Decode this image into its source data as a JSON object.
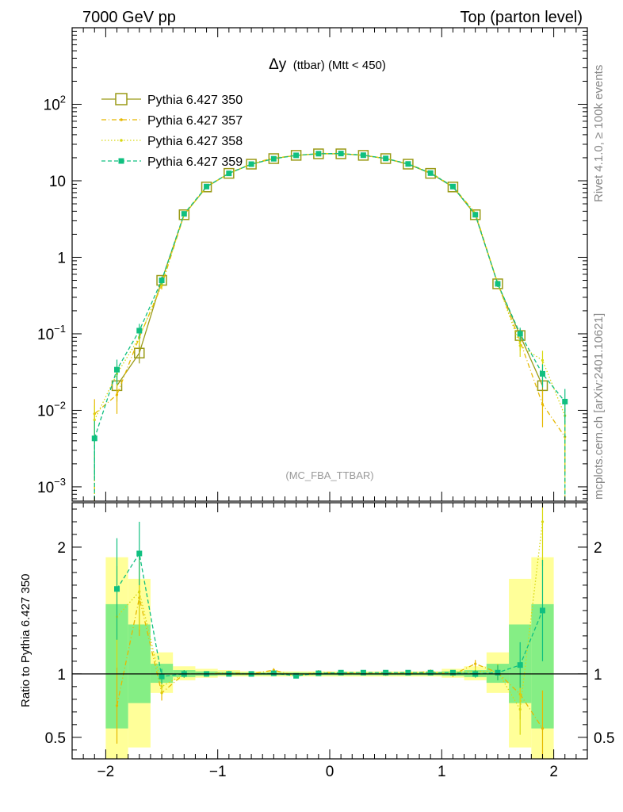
{
  "header": {
    "left": "7000 GeV pp",
    "right": "Top (parton level)"
  },
  "side_labels": {
    "rivet": "Rivet 4.1.0, ≥ 100k events",
    "mcplots": "mcplots.cern.ch [arXiv:2401.10621]"
  },
  "chart_data": {
    "type": "line",
    "title_main": "Δy",
    "title_sub": "(ttbar) (Mtt < 450)",
    "watermark": "(MC_FBA_TTBAR)",
    "yscale": "log",
    "ylim": [
      0.00065,
      1000
    ],
    "xlim": [
      -2.3,
      2.3
    ],
    "ytick_labels": [
      "10^-3",
      "10^-2",
      "10^-1",
      "1",
      "10",
      "10^2"
    ],
    "xtick_labels": [
      "−2",
      "−1",
      "0",
      "1",
      "2"
    ],
    "ratio_ylabel": "Ratio to Pythia 6.427 350",
    "ratio_ylim": [
      0.33,
      2.35
    ],
    "ratio_ytick_labels": [
      "0.5",
      "1",
      "2"
    ],
    "bands": {
      "edges": [
        -2.0,
        -1.8,
        -1.6,
        -1.4,
        -1.2,
        -1.0,
        -0.8,
        -0.6,
        -0.4,
        -0.2,
        0.0,
        0.2,
        0.4,
        0.6,
        0.8,
        1.0,
        1.2,
        1.4,
        1.6,
        1.8,
        2.0
      ],
      "green": [
        [
          0.57,
          1.55
        ],
        [
          0.77,
          1.39
        ],
        [
          0.93,
          1.08
        ],
        [
          0.975,
          1.03
        ],
        [
          0.985,
          1.02
        ],
        [
          0.99,
          1.015
        ],
        [
          0.99,
          1.01
        ],
        [
          0.99,
          1.01
        ],
        [
          0.99,
          1.01
        ],
        [
          0.99,
          1.01
        ],
        [
          0.99,
          1.01
        ],
        [
          0.99,
          1.01
        ],
        [
          0.99,
          1.01
        ],
        [
          0.99,
          1.01
        ],
        [
          0.99,
          1.01
        ],
        [
          0.985,
          1.02
        ],
        [
          0.975,
          1.03
        ],
        [
          0.93,
          1.08
        ],
        [
          0.77,
          1.39
        ],
        [
          0.57,
          1.55
        ]
      ],
      "yellow": [
        [
          0.3,
          1.92
        ],
        [
          0.42,
          1.75
        ],
        [
          0.85,
          1.17
        ],
        [
          0.95,
          1.06
        ],
        [
          0.97,
          1.04
        ],
        [
          0.98,
          1.03
        ],
        [
          0.98,
          1.02
        ],
        [
          0.98,
          1.02
        ],
        [
          0.98,
          1.02
        ],
        [
          0.98,
          1.02
        ],
        [
          0.98,
          1.02
        ],
        [
          0.98,
          1.02
        ],
        [
          0.98,
          1.02
        ],
        [
          0.98,
          1.02
        ],
        [
          0.98,
          1.02
        ],
        [
          0.97,
          1.04
        ],
        [
          0.95,
          1.06
        ],
        [
          0.85,
          1.17
        ],
        [
          0.42,
          1.75
        ],
        [
          0.3,
          1.92
        ]
      ]
    },
    "series": [
      {
        "name": "Pythia 6.427 350",
        "color": "#9a9a16",
        "dash": "",
        "marker": "open-square",
        "x": [
          -1.9,
          -1.7,
          -1.5,
          -1.3,
          -1.1,
          -0.9,
          -0.7,
          -0.5,
          -0.3,
          -0.1,
          0.1,
          0.3,
          0.5,
          0.7,
          0.9,
          1.1,
          1.3,
          1.5,
          1.7,
          1.9
        ],
        "y": [
          0.021,
          0.056,
          0.5,
          3.6,
          8.3,
          12.5,
          16.5,
          19.5,
          21.5,
          22.5,
          22.5,
          21.5,
          19.5,
          16.5,
          12.5,
          8.3,
          3.6,
          0.45,
          0.095,
          0.021
        ],
        "yerr": [
          0.008,
          0.015,
          0.04,
          0.1,
          0.15,
          0.2,
          0.2,
          0.2,
          0.2,
          0.2,
          0.2,
          0.2,
          0.2,
          0.2,
          0.2,
          0.15,
          0.1,
          0.04,
          0.02,
          0.008
        ],
        "ratio": [
          1,
          1,
          1,
          1,
          1,
          1,
          1,
          1,
          1,
          1,
          1,
          1,
          1,
          1,
          1,
          1,
          1,
          1,
          1,
          1
        ],
        "ratio_err": [
          0,
          0,
          0,
          0,
          0,
          0,
          0,
          0,
          0,
          0,
          0,
          0,
          0,
          0,
          0,
          0,
          0,
          0,
          0,
          0
        ]
      },
      {
        "name": "Pythia 6.427 357",
        "color": "#e6b800",
        "dash": "6,3,1,3",
        "marker": "dot",
        "x": [
          -2.1,
          -1.9,
          -1.7,
          -1.5,
          -1.3,
          -1.1,
          -0.9,
          -0.7,
          -0.5,
          -0.3,
          -0.1,
          0.1,
          0.3,
          0.5,
          0.7,
          0.9,
          1.1,
          1.3,
          1.5,
          1.7,
          1.9,
          2.1
        ],
        "y": [
          0.009,
          0.016,
          0.09,
          0.43,
          3.6,
          8.3,
          12.6,
          16.6,
          20.0,
          21.2,
          22.8,
          22.6,
          21.6,
          19.5,
          16.6,
          12.8,
          8.4,
          3.8,
          0.45,
          0.08,
          0.012,
          0.0045
        ],
        "yerr": [
          0.005,
          0.007,
          0.02,
          0.05,
          0.1,
          0.15,
          0.2,
          0.2,
          0.2,
          0.2,
          0.2,
          0.2,
          0.2,
          0.2,
          0.2,
          0.2,
          0.15,
          0.1,
          0.04,
          0.02,
          0.006,
          0.003
        ],
        "ratio": [
          null,
          0.75,
          1.6,
          0.85,
          1.0,
          1.0,
          1.01,
          1.0,
          1.03,
          0.985,
          1.015,
          1.005,
          1.005,
          1.0,
          1.005,
          1.02,
          0.995,
          1.08,
          1.01,
          0.84,
          0.57,
          null
        ],
        "ratio_err": [
          0,
          0.3,
          0.3,
          0.06,
          0.03,
          0.02,
          0.015,
          0.015,
          0.015,
          0.015,
          0.015,
          0.015,
          0.015,
          0.015,
          0.015,
          0.015,
          0.02,
          0.03,
          0.06,
          0.2,
          0.3,
          0
        ]
      },
      {
        "name": "Pythia 6.427 358",
        "color": "#d8d810",
        "dash": "1.5,2.5",
        "marker": "dot",
        "x": [
          -2.1,
          -1.9,
          -1.7,
          -1.5,
          -1.3,
          -1.1,
          -0.9,
          -0.7,
          -0.5,
          -0.3,
          -0.1,
          0.1,
          0.3,
          0.5,
          0.7,
          0.9,
          1.1,
          1.3,
          1.5,
          1.7,
          1.9,
          2.1
        ],
        "y": [
          0.0075,
          0.03,
          0.09,
          0.45,
          3.6,
          8.3,
          12.5,
          16.4,
          19.6,
          21.4,
          22.5,
          22.7,
          21.6,
          19.6,
          16.7,
          12.6,
          8.4,
          3.7,
          0.46,
          0.07,
          0.045,
          0.0085
        ],
        "yerr": [
          0.004,
          0.01,
          0.02,
          0.05,
          0.1,
          0.15,
          0.2,
          0.2,
          0.2,
          0.2,
          0.2,
          0.2,
          0.2,
          0.2,
          0.2,
          0.2,
          0.15,
          0.1,
          0.04,
          0.02,
          0.015,
          0.005
        ],
        "ratio": [
          null,
          1.45,
          1.65,
          0.9,
          1.0,
          1.0,
          1.0,
          0.995,
          1.005,
          0.99,
          1.0,
          1.01,
          1.005,
          1.005,
          1.01,
          1.01,
          1.01,
          1.02,
          1.02,
          0.72,
          2.2,
          null
        ],
        "ratio_err": [
          0,
          0.4,
          0.3,
          0.07,
          0.03,
          0.02,
          0.015,
          0.015,
          0.015,
          0.015,
          0.015,
          0.015,
          0.015,
          0.015,
          0.015,
          0.015,
          0.02,
          0.03,
          0.06,
          0.2,
          0.35,
          0
        ]
      },
      {
        "name": "Pythia 6.427 359",
        "color": "#10c080",
        "dash": "5,3",
        "marker": "filled-square",
        "x": [
          -2.1,
          -1.9,
          -1.7,
          -1.5,
          -1.3,
          -1.1,
          -0.9,
          -0.7,
          -0.5,
          -0.3,
          -0.1,
          0.1,
          0.3,
          0.5,
          0.7,
          0.9,
          1.1,
          1.3,
          1.5,
          1.7,
          1.9,
          2.1
        ],
        "y": [
          0.0043,
          0.034,
          0.11,
          0.5,
          3.7,
          8.4,
          12.5,
          16.5,
          19.4,
          21.5,
          22.6,
          22.7,
          21.6,
          19.6,
          16.6,
          12.6,
          8.4,
          3.6,
          0.45,
          0.1,
          0.03,
          0.013
        ],
        "yerr": [
          0.003,
          0.012,
          0.025,
          0.06,
          0.1,
          0.15,
          0.2,
          0.2,
          0.2,
          0.2,
          0.2,
          0.2,
          0.2,
          0.2,
          0.2,
          0.2,
          0.15,
          0.1,
          0.04,
          0.02,
          0.01,
          0.006
        ],
        "ratio": [
          null,
          1.67,
          1.95,
          0.98,
          1.0,
          1.0,
          1.0,
          1.0,
          1.005,
          0.985,
          1.005,
          1.01,
          1.01,
          1.01,
          1.01,
          1.01,
          1.01,
          1.0,
          1.01,
          1.07,
          1.5,
          null
        ],
        "ratio_err": [
          0,
          0.4,
          0.25,
          0.06,
          0.03,
          0.02,
          0.015,
          0.015,
          0.015,
          0.015,
          0.015,
          0.015,
          0.015,
          0.015,
          0.015,
          0.015,
          0.02,
          0.03,
          0.06,
          0.18,
          0.4,
          0
        ]
      }
    ]
  }
}
